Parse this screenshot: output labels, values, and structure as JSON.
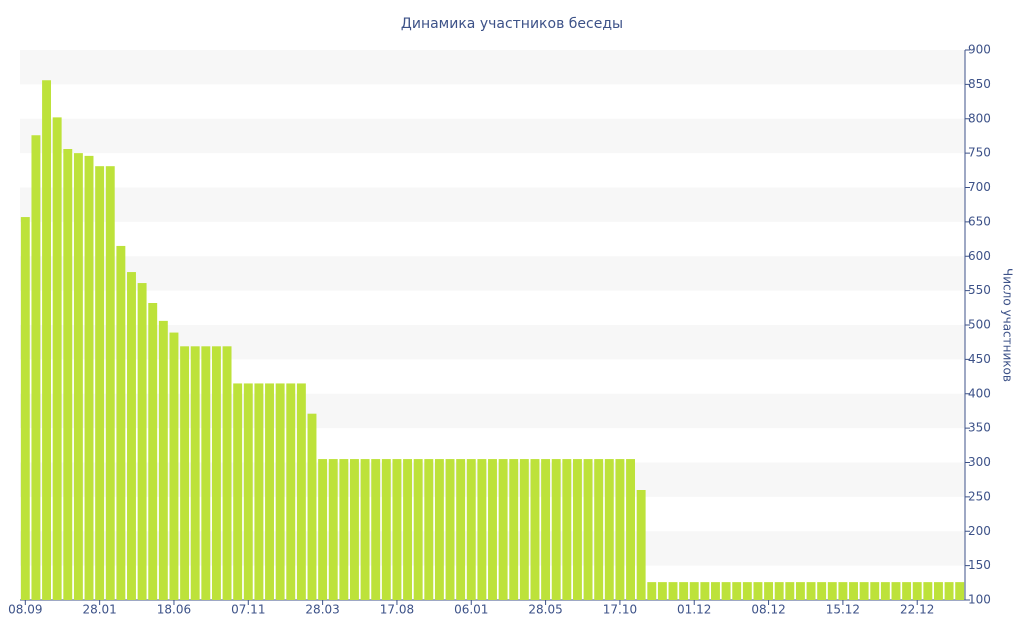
{
  "chart_data": {
    "type": "bar",
    "title": "Динамика участников беседы",
    "y_axis_label": "Число участников",
    "categories": [
      "08.09",
      null,
      null,
      null,
      null,
      null,
      null,
      "28.01",
      null,
      null,
      null,
      null,
      null,
      null,
      "18.06",
      null,
      null,
      null,
      null,
      null,
      null,
      "07.11",
      null,
      null,
      null,
      null,
      null,
      null,
      "28.03",
      null,
      null,
      null,
      null,
      null,
      null,
      "17.08",
      null,
      null,
      null,
      null,
      null,
      null,
      "06.01",
      null,
      null,
      null,
      null,
      null,
      null,
      "28.05",
      null,
      null,
      null,
      null,
      null,
      null,
      "17.10",
      null,
      null,
      null,
      null,
      null,
      null,
      "01.12",
      null,
      null,
      null,
      null,
      null,
      null,
      "08.12",
      null,
      null,
      null,
      null,
      null,
      null,
      "15.12",
      null,
      null,
      null,
      null,
      null,
      null,
      "22.12",
      null,
      null,
      null,
      null
    ],
    "values": [
      657,
      776,
      856,
      802,
      756,
      750,
      746,
      731,
      731,
      615,
      577,
      561,
      532,
      506,
      489,
      469,
      469,
      469,
      469,
      469,
      415,
      415,
      415,
      415,
      415,
      415,
      415,
      371,
      305,
      305,
      305,
      305,
      305,
      305,
      305,
      305,
      305,
      305,
      305,
      305,
      305,
      305,
      305,
      305,
      305,
      305,
      305,
      305,
      305,
      305,
      305,
      305,
      305,
      305,
      305,
      305,
      305,
      305,
      260,
      126,
      126,
      126,
      126,
      126,
      126,
      126,
      126,
      126,
      126,
      126,
      126,
      126,
      126,
      126,
      126,
      126,
      126,
      126,
      126,
      126,
      126,
      126,
      126,
      126,
      126,
      126,
      126,
      126,
      126
    ],
    "color": "#bde23a",
    "ylim": [
      100,
      900
    ],
    "yticks": [
      100,
      150,
      200,
      250,
      300,
      350,
      400,
      450,
      500,
      550,
      600,
      650,
      700,
      750,
      800,
      850,
      900
    ],
    "grid": true,
    "y_axis_side": "right"
  }
}
